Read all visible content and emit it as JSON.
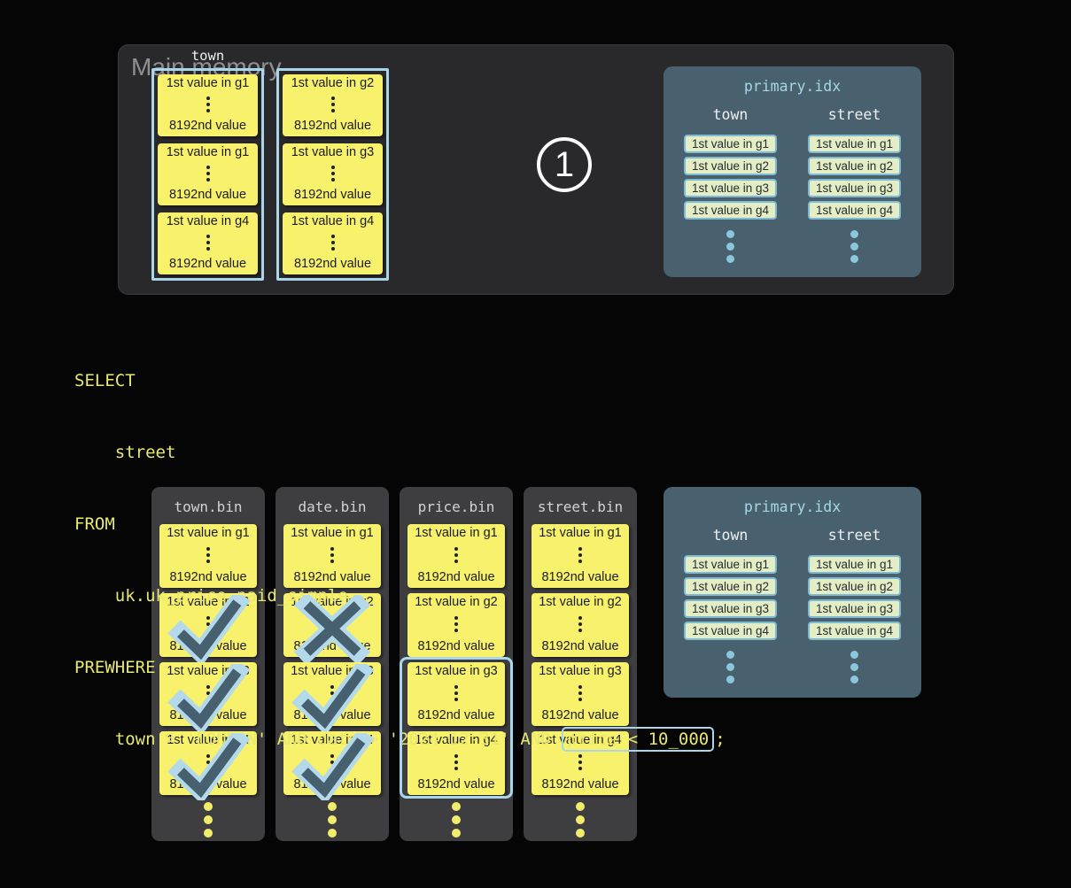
{
  "colors": {
    "background": "#050506",
    "memory_box": "#29292c",
    "panel_gray": "#3e3e41",
    "granule_yellow": "#f7f16b",
    "granule_text": "#1c1c1e",
    "accent_blue": "#a9d7e9",
    "index_panel": "#49616e",
    "index_pill_bg": "#e4eec6",
    "index_pill_border": "#7fb9d2",
    "index_title": "#a5d7e8",
    "sql_yellow": "#e9e86f",
    "muted_label": "#909094",
    "mark_dark": "#46606f",
    "mark_light": "#b4d9ea",
    "dot_blue": "#8cc6dd",
    "white_text": "#eef0f2"
  },
  "main_memory": {
    "label": "Main memory",
    "column_label": "town",
    "step_badge": "1",
    "columns": [
      {
        "blocks": [
          {
            "top": "1st value in g1",
            "bottom": "8192nd value",
            "mark": null
          },
          {
            "top": "1st value in g1",
            "bottom": "8192nd value",
            "mark": null
          },
          {
            "top": "1st value in g4",
            "bottom": "8192nd value",
            "mark": null
          }
        ]
      },
      {
        "blocks": [
          {
            "top": "1st value in g2",
            "bottom": "8192nd value",
            "mark": null
          },
          {
            "top": "1st value in g3",
            "bottom": "8192nd value",
            "mark": null
          },
          {
            "top": "1st value in g4",
            "bottom": "8192nd value",
            "mark": null
          }
        ]
      }
    ]
  },
  "sql": {
    "lines": [
      "SELECT",
      "    street",
      "FROM",
      "    uk.uk_price_paid_simple",
      "PREWHERE"
    ],
    "last_line": {
      "prefix": "    town = 'LONDON' AND date > '2024-12-31' AND ",
      "boxed": "price < 10_000",
      "suffix": ";"
    }
  },
  "bin_files": [
    {
      "name": "town.bin",
      "granules": [
        {
          "top": "1st value in g1",
          "bottom": "8192nd value",
          "mark": null
        },
        {
          "top": "1st value in g2",
          "bottom": "8192nd value",
          "mark": "check"
        },
        {
          "top": "1st value in g3",
          "bottom": "8192nd value",
          "mark": "check"
        },
        {
          "top": "1st value in g4",
          "bottom": "8192nd value",
          "mark": "check"
        }
      ]
    },
    {
      "name": "date.bin",
      "granules": [
        {
          "top": "1st value in g1",
          "bottom": "8192nd value",
          "mark": null
        },
        {
          "top": "1st value in g2",
          "bottom": "8192nd value",
          "mark": "cross"
        },
        {
          "top": "1st value in g3",
          "bottom": "8192nd value",
          "mark": "check"
        },
        {
          "top": "1st value in g4",
          "bottom": "8192nd value",
          "mark": "check"
        }
      ]
    },
    {
      "name": "price.bin",
      "highlight_granules": [
        "g3",
        "g4"
      ],
      "granules": [
        {
          "top": "1st value in g1",
          "bottom": "8192nd value",
          "mark": null
        },
        {
          "top": "1st value in g2",
          "bottom": "8192nd value",
          "mark": null
        },
        {
          "top": "1st value in g3",
          "bottom": "8192nd value",
          "mark": null
        },
        {
          "top": "1st value in g4",
          "bottom": "8192nd value",
          "mark": null
        }
      ]
    },
    {
      "name": "street.bin",
      "granules": [
        {
          "top": "1st value in g1",
          "bottom": "8192nd value",
          "mark": null
        },
        {
          "top": "1st value in g2",
          "bottom": "8192nd value",
          "mark": null
        },
        {
          "top": "1st value in g3",
          "bottom": "8192nd value",
          "mark": null
        },
        {
          "top": "1st value in g4",
          "bottom": "8192nd value",
          "mark": null
        }
      ]
    }
  ],
  "primary_index": {
    "title": "primary.idx",
    "columns": [
      {
        "header": "town",
        "entries": [
          "1st value in g1",
          "1st value in g2",
          "1st value in g3",
          "1st value in g4"
        ]
      },
      {
        "header": "street",
        "entries": [
          "1st value in g1",
          "1st value in g2",
          "1st value in g3",
          "1st value in g4"
        ]
      }
    ]
  }
}
